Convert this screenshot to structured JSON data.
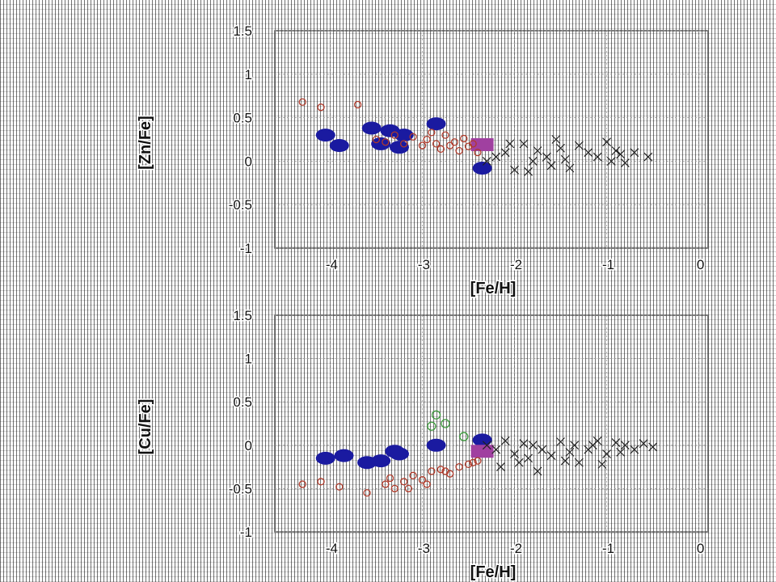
{
  "colors": {
    "filled_circle": "#1a1aa0",
    "square": "#a040a0",
    "open_circle": "#b03a2a",
    "cross": "#222222",
    "open_green": "#3a9a3a",
    "frame": "#555555"
  },
  "chart_data": [
    {
      "type": "scatter",
      "xlabel": "[Fe/H]",
      "ylabel": "[Zn/Fe]",
      "xlim": [
        -4.6,
        0.1
      ],
      "ylim": [
        -1.0,
        1.5
      ],
      "xticks": [
        "-4",
        "-3",
        "-2",
        "-1",
        "0"
      ],
      "xtick_values": [
        -4,
        -3,
        -2,
        -1,
        0
      ],
      "yticks": [
        "1.5",
        "1",
        "0.5",
        "0",
        "-0.5",
        "-1"
      ],
      "ytick_values": [
        1.5,
        1,
        0.5,
        0,
        -0.5,
        -1
      ],
      "grid": true,
      "series": [
        {
          "marker": "filled_circle",
          "x": [
            -4.05,
            -3.9,
            -3.55,
            -3.35,
            -3.25,
            -3.45,
            -3.2,
            -2.85,
            -2.35
          ],
          "y": [
            0.3,
            0.18,
            0.38,
            0.35,
            0.16,
            0.2,
            0.3,
            0.43,
            -0.08
          ]
        },
        {
          "marker": "square",
          "x": [
            -2.35
          ],
          "y": [
            0.19
          ]
        },
        {
          "marker": "open_circle",
          "x": [
            -4.3,
            -4.1,
            -3.7,
            -3.5,
            -3.4,
            -3.3,
            -3.2,
            -3.1,
            -3.0,
            -2.95,
            -2.9,
            -2.85,
            -2.8,
            -2.75,
            -2.7,
            -2.65,
            -2.6,
            -2.55,
            -2.5,
            -2.45,
            -2.4
          ],
          "y": [
            0.68,
            0.62,
            0.65,
            0.25,
            0.22,
            0.3,
            0.2,
            0.28,
            0.18,
            0.25,
            0.33,
            0.2,
            0.14,
            0.3,
            0.18,
            0.22,
            0.12,
            0.26,
            0.17,
            0.2,
            0.1
          ]
        },
        {
          "marker": "cross",
          "x": [
            -2.2,
            -2.1,
            -2.0,
            -1.9,
            -1.8,
            -1.75,
            -1.65,
            -1.6,
            -1.5,
            -1.45,
            -1.4,
            -1.3,
            -1.2,
            -1.1,
            -1.0,
            -0.95,
            -0.9,
            -0.85,
            -0.8,
            -0.7,
            -0.55,
            -2.3,
            -2.05,
            -1.85,
            -1.55
          ],
          "y": [
            0.05,
            0.1,
            -0.1,
            0.2,
            0.0,
            0.12,
            0.05,
            -0.05,
            0.15,
            0.02,
            -0.08,
            0.18,
            0.1,
            0.05,
            0.22,
            0.0,
            0.12,
            0.08,
            -0.02,
            0.1,
            0.05,
            0.0,
            0.2,
            -0.12,
            0.25
          ]
        }
      ]
    },
    {
      "type": "scatter",
      "xlabel": "[Fe/H]",
      "ylabel": "[Cu/Fe]",
      "xlim": [
        -4.6,
        0.1
      ],
      "ylim": [
        -1.0,
        1.5
      ],
      "xticks": [
        "-4",
        "-3",
        "-2",
        "-1",
        "0"
      ],
      "xtick_values": [
        -4,
        -3,
        -2,
        -1,
        0
      ],
      "yticks": [
        "1.5",
        "1",
        "0.5",
        "0",
        "-0.5",
        "-1"
      ],
      "ytick_values": [
        1.5,
        1,
        0.5,
        0,
        -0.5,
        -1
      ],
      "grid": true,
      "series": [
        {
          "marker": "filled_circle",
          "x": [
            -4.05,
            -3.85,
            -3.6,
            -3.45,
            -3.25,
            -3.3,
            -2.85,
            -2.35
          ],
          "y": [
            -0.15,
            -0.12,
            -0.2,
            -0.18,
            -0.1,
            -0.07,
            0.0,
            0.06
          ]
        },
        {
          "marker": "square",
          "x": [
            -2.35
          ],
          "y": [
            -0.07
          ]
        },
        {
          "marker": "open_circle",
          "x": [
            -4.3,
            -4.1,
            -3.9,
            -3.6,
            -3.4,
            -3.35,
            -3.3,
            -3.2,
            -3.1,
            -3.0,
            -2.9,
            -2.8,
            -2.7,
            -2.6,
            -2.5,
            -2.45,
            -2.4,
            -3.15,
            -2.95,
            -2.75
          ],
          "y": [
            -0.45,
            -0.42,
            -0.48,
            -0.55,
            -0.45,
            -0.38,
            -0.5,
            -0.42,
            -0.35,
            -0.4,
            -0.3,
            -0.28,
            -0.33,
            -0.25,
            -0.22,
            -0.2,
            -0.18,
            -0.5,
            -0.45,
            -0.3
          ]
        },
        {
          "marker": "open_green",
          "x": [
            -2.9,
            -2.75,
            -2.55,
            -2.85
          ],
          "y": [
            0.22,
            0.25,
            0.1,
            0.35
          ]
        },
        {
          "marker": "cross",
          "x": [
            -2.3,
            -2.2,
            -2.1,
            -2.0,
            -1.95,
            -1.9,
            -1.85,
            -1.8,
            -1.7,
            -1.6,
            -1.5,
            -1.4,
            -1.35,
            -1.3,
            -1.2,
            -1.1,
            -1.0,
            -0.9,
            -0.8,
            -0.7,
            -0.6,
            -0.5,
            -2.15,
            -1.75,
            -1.45,
            -1.15,
            -1.05,
            -0.85
          ],
          "y": [
            0.0,
            -0.05,
            0.05,
            -0.1,
            -0.2,
            0.02,
            -0.15,
            0.0,
            -0.05,
            -0.12,
            0.04,
            -0.08,
            0.0,
            -0.2,
            -0.05,
            0.05,
            -0.1,
            0.03,
            0.0,
            -0.05,
            0.02,
            -0.02,
            -0.25,
            -0.3,
            -0.18,
            0.0,
            -0.22,
            -0.08
          ]
        }
      ]
    }
  ]
}
